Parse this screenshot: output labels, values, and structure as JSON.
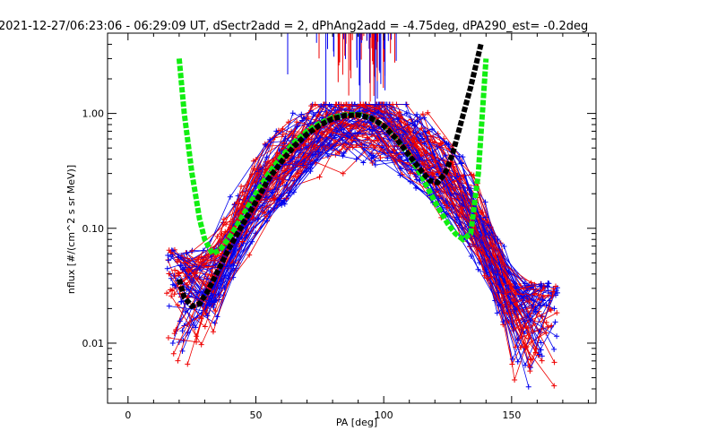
{
  "chart_data": {
    "type": "line",
    "title": "2021-12-27/06:23:06 - 06:29:09 UT, dSectr2add = 2, dPhAng2add = -4.75deg, dPA290_est=  -0.2deg",
    "xlabel": "PA [deg]",
    "ylabel": "nflux [#/(cm^2 s sr MeV)]",
    "xlim": [
      -8,
      183
    ],
    "ylim": [
      0.003,
      5.0
    ],
    "yscale": "log",
    "grid": false,
    "xticks": [
      {
        "value": 0,
        "label": "0"
      },
      {
        "value": 50,
        "label": "50"
      },
      {
        "value": 100,
        "label": "100"
      },
      {
        "value": 150,
        "label": "150"
      }
    ],
    "yticks": [
      {
        "value": 0.01,
        "label": "0.01"
      },
      {
        "value": 0.1,
        "label": "0.10"
      },
      {
        "value": 1.0,
        "label": "1.00"
      }
    ],
    "colors": {
      "red_series": "#ee0000",
      "blue_series": "#0000ee",
      "fit_green": "#11ee11",
      "fit_black": "#000000"
    },
    "series": [
      {
        "color": "green",
        "style": "thick dashed",
        "x": [
          20,
          22,
          25,
          28,
          30,
          33,
          36,
          40,
          45,
          50,
          55,
          60,
          65,
          70,
          75,
          80,
          85,
          88,
          91,
          95,
          100,
          105,
          110,
          115,
          120,
          125,
          128,
          131,
          134,
          137,
          140
        ],
        "y": [
          3.0,
          1.0,
          0.3,
          0.12,
          0.08,
          0.06,
          0.065,
          0.085,
          0.13,
          0.2,
          0.3,
          0.42,
          0.56,
          0.7,
          0.82,
          0.92,
          0.97,
          0.98,
          0.97,
          0.91,
          0.78,
          0.6,
          0.43,
          0.28,
          0.17,
          0.11,
          0.09,
          0.08,
          0.09,
          0.3,
          3.0
        ]
      },
      {
        "color": "black",
        "style": "thick dashed",
        "x": [
          20,
          22,
          25,
          28,
          31,
          35,
          40,
          45,
          50,
          55,
          60,
          65,
          70,
          75,
          80,
          85,
          90,
          95,
          100,
          105,
          110,
          115,
          118,
          121,
          124,
          127,
          130,
          134,
          138
        ],
        "y": [
          0.036,
          0.025,
          0.021,
          0.022,
          0.028,
          0.042,
          0.07,
          0.11,
          0.17,
          0.27,
          0.38,
          0.52,
          0.66,
          0.79,
          0.9,
          0.96,
          0.97,
          0.91,
          0.78,
          0.6,
          0.43,
          0.31,
          0.26,
          0.25,
          0.3,
          0.45,
          0.8,
          1.7,
          4.0
        ]
      }
    ]
  }
}
